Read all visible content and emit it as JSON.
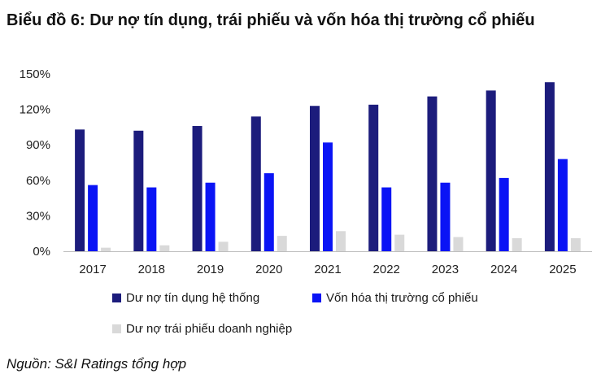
{
  "chart_data": {
    "type": "bar",
    "title": "Biểu đồ 6: Dư nợ tín dụng, trái phiếu và vốn hóa thị trường cổ phiếu",
    "categories": [
      "2017",
      "2018",
      "2019",
      "2020",
      "2021",
      "2022",
      "2023",
      "2024",
      "2025"
    ],
    "series": [
      {
        "name": "Dư nợ tín dụng hệ thống",
        "color": "#1c1c7c",
        "values": [
          103,
          102,
          106,
          114,
          123,
          124,
          131,
          136,
          143
        ]
      },
      {
        "name": "Vốn hóa thị trường cổ phiếu",
        "color": "#0a14f5",
        "values": [
          56,
          54,
          58,
          66,
          92,
          54,
          58,
          62,
          78
        ]
      },
      {
        "name": "Dư nợ trái phiếu doanh nghiệp",
        "color": "#d9d9d9",
        "values": [
          3,
          5,
          8,
          13,
          17,
          14,
          12,
          11,
          11
        ]
      }
    ],
    "yticks": [
      "0%",
      "30%",
      "60%",
      "90%",
      "120%",
      "150%"
    ],
    "ylim": [
      0,
      150
    ],
    "grid": false,
    "legend_position": "bottom"
  },
  "source": "Nguồn: S&I Ratings tổng hợp"
}
